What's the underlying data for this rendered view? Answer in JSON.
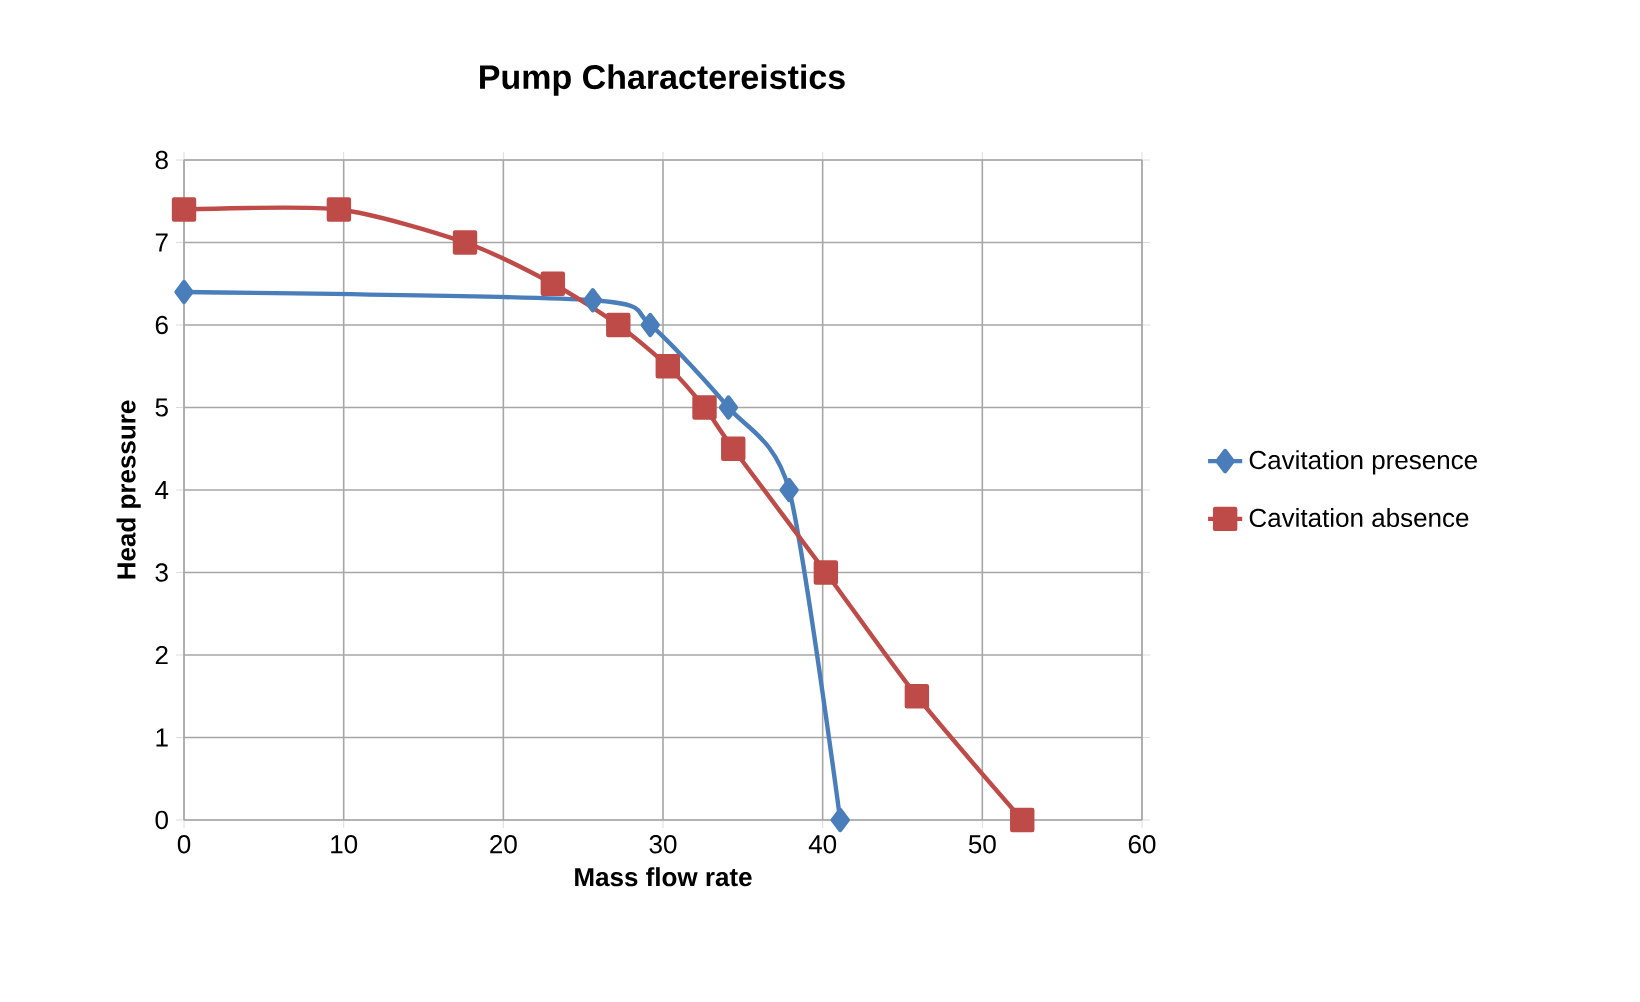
{
  "chart_data": {
    "type": "line",
    "title": "Pump Charactereistics",
    "xlabel": "Mass flow rate",
    "ylabel": "Head pressure",
    "series": [
      {
        "name": "Cavitation presence",
        "color": "#4a7ebb",
        "marker": "diamond",
        "x": [
          0,
          25.6,
          29.2,
          34.1,
          37.9,
          40.2,
          41.1
        ],
        "values": [
          6.4,
          6.3,
          6.0,
          5.0,
          4.0,
          null,
          0
        ]
      },
      {
        "name": "Cavitation absence",
        "color": "#be4b48",
        "marker": "square",
        "x": [
          0,
          9.7,
          17.6,
          23.1,
          27.2,
          30.3,
          32.6,
          34.4,
          40.2,
          45.9,
          52.5
        ],
        "values": [
          7.4,
          7.4,
          7.0,
          6.5,
          6.0,
          5.5,
          5.0,
          4.5,
          3.0,
          1.5,
          0
        ]
      }
    ],
    "xlim": [
      0,
      60
    ],
    "xticks": [
      0,
      10,
      20,
      30,
      40,
      50,
      60
    ],
    "ylim": [
      0,
      8
    ],
    "yticks": [
      0,
      1,
      2,
      3,
      4,
      5,
      6,
      7,
      8
    ],
    "grid": true,
    "legend": "right",
    "line_style": "solid"
  }
}
